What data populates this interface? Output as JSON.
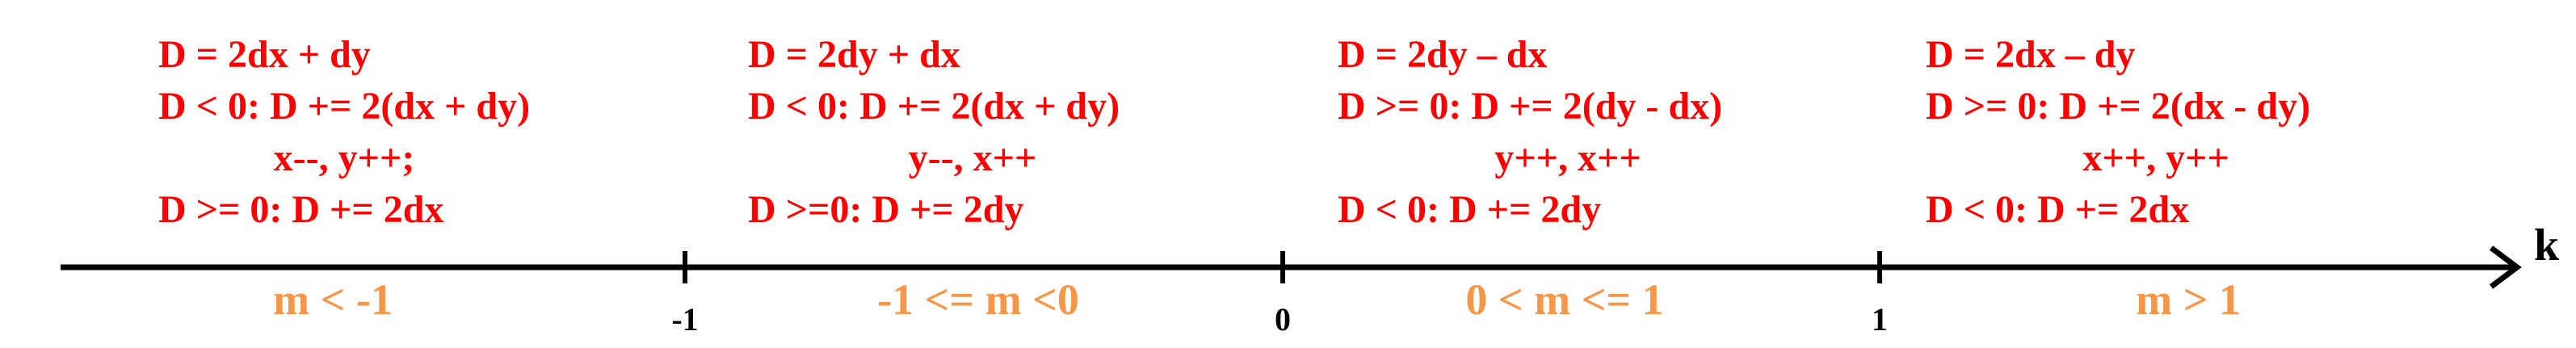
{
  "axis": {
    "label": "k",
    "ticks": [
      "-1",
      "0",
      "1"
    ],
    "line_color": "#000000"
  },
  "colors": {
    "rules": "#ff0000",
    "ranges": "#f79646"
  },
  "regions": [
    {
      "range": "m < -1",
      "lines": [
        "D = 2dx + dy",
        "D < 0: D += 2(dx + dy)",
        "x--, y++;",
        "D >= 0: D += 2dx"
      ]
    },
    {
      "range": "-1 <= m <0",
      "lines": [
        "D = 2dy + dx",
        "D < 0: D += 2(dx + dy)",
        "y--, x++",
        "D >=0: D += 2dy"
      ]
    },
    {
      "range": "0 < m <= 1",
      "lines": [
        "D = 2dy – dx",
        "D >= 0: D += 2(dy - dx)",
        "y++, x++",
        "D < 0: D += 2dy"
      ]
    },
    {
      "range": "m > 1",
      "lines": [
        "D = 2dx – dy",
        "D >= 0: D += 2(dx - dy)",
        "x++, y++",
        "D < 0: D += 2dx"
      ]
    }
  ]
}
